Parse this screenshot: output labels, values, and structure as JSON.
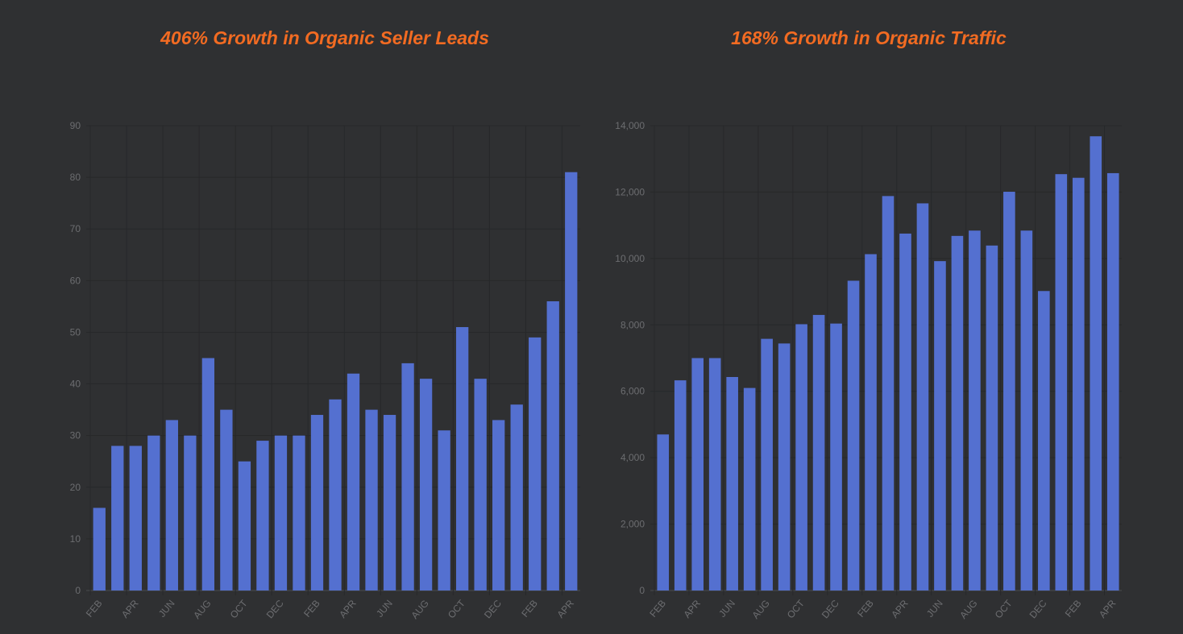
{
  "chart_data": [
    {
      "type": "bar",
      "title": "406% Growth in Organic Seller Leads",
      "xlabel": "",
      "ylabel": "",
      "ylim": [
        0,
        90
      ],
      "yticks": [
        0,
        10,
        20,
        30,
        40,
        50,
        60,
        70,
        80,
        90
      ],
      "ytick_labels": [
        "0",
        "10",
        "20",
        "30",
        "40",
        "50",
        "60",
        "70",
        "80",
        "90"
      ],
      "xtick_labels": [
        "FEB",
        "APR",
        "JUN",
        "AUG",
        "OCT",
        "DEC",
        "FEB",
        "APR",
        "JUN",
        "AUG",
        "OCT",
        "DEC",
        "FEB",
        "APR"
      ],
      "values": [
        16,
        28,
        28,
        30,
        33,
        30,
        45,
        35,
        25,
        29,
        30,
        30,
        34,
        37,
        42,
        35,
        34,
        44,
        41,
        31,
        51,
        41,
        33,
        36,
        49,
        56,
        81
      ],
      "color": "#5470d0",
      "grid": true
    },
    {
      "type": "bar",
      "title": "168% Growth in Organic Traffic",
      "xlabel": "",
      "ylabel": "",
      "ylim": [
        0,
        14000
      ],
      "yticks": [
        0,
        2000,
        4000,
        6000,
        8000,
        10000,
        12000,
        14000
      ],
      "ytick_labels": [
        "0",
        "2,000",
        "4,000",
        "6,000",
        "8,000",
        "10,000",
        "12,000",
        "14,000"
      ],
      "xtick_labels": [
        "FEB",
        "APR",
        "JUN",
        "AUG",
        "OCT",
        "DEC",
        "FEB",
        "APR",
        "JUN",
        "AUG",
        "OCT",
        "DEC",
        "FEB",
        "APR"
      ],
      "values": [
        4700,
        6330,
        7000,
        7000,
        6430,
        6100,
        7580,
        7440,
        8020,
        8300,
        8040,
        9330,
        10130,
        11880,
        10750,
        11660,
        9920,
        10680,
        10840,
        10390,
        12010,
        10840,
        9020,
        12540,
        12430,
        13680,
        12570
      ],
      "color": "#5470d0",
      "grid": true
    }
  ]
}
